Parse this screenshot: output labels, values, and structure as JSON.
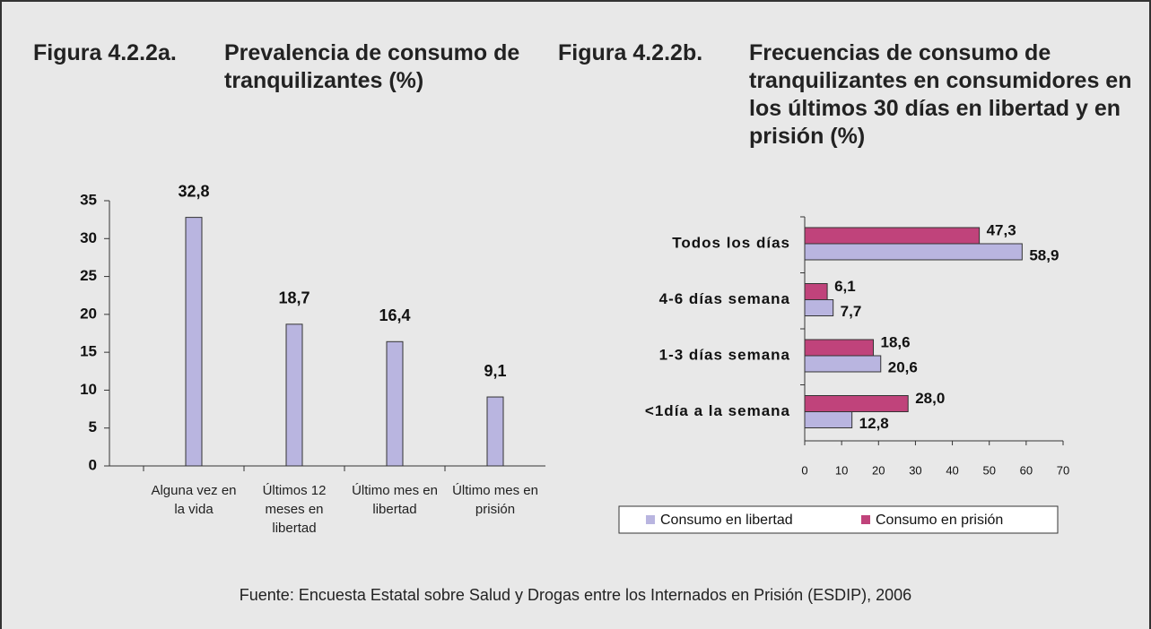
{
  "chart_data": [
    {
      "type": "bar",
      "label": "Figura 4.2.2a.",
      "title": "Prevalencia de consumo de tranquilizantes (%)",
      "categories": [
        "Alguna vez en la vida",
        "Últimos 12 meses en libertad",
        "Último mes en libertad",
        "Último mes en prisión"
      ],
      "values": [
        32.8,
        18.7,
        16.4,
        9.1
      ],
      "value_labels": [
        "32,8",
        "18,7",
        "16,4",
        "9,1"
      ],
      "color": "#b9b5e0",
      "ylim": [
        0,
        35
      ],
      "yticks": [
        0,
        5,
        10,
        15,
        20,
        25,
        30,
        35
      ]
    },
    {
      "type": "barh",
      "label": "Figura 4.2.2b.",
      "title": "Frecuencias de consumo de tranquilizantes en consumidores en los últimos 30 días en libertad y en prisión (%)",
      "categories": [
        "Todos los días",
        "4-6 días semana",
        "1-3 días semana",
        "<1día a la semana"
      ],
      "series": [
        {
          "name": "Consumo en libertad",
          "color": "#b9b5e0",
          "values": [
            58.9,
            7.7,
            20.6,
            12.8
          ],
          "value_labels": [
            "58,9",
            "7,7",
            "20,6",
            "12,8"
          ]
        },
        {
          "name": "Consumo en prisión",
          "color": "#c0437b",
          "values": [
            47.3,
            6.1,
            18.6,
            28.0
          ],
          "value_labels": [
            "47,3",
            "6,1",
            "18,6",
            "28,0"
          ]
        }
      ],
      "xlim": [
        0,
        70
      ],
      "xticks": [
        0,
        10,
        20,
        30,
        40,
        50,
        60,
        70
      ],
      "legend": "bottom"
    }
  ],
  "source": "Fuente: Encuesta Estatal sobre Salud y Drogas entre los Internados en Prisión (ESDIP), 2006"
}
